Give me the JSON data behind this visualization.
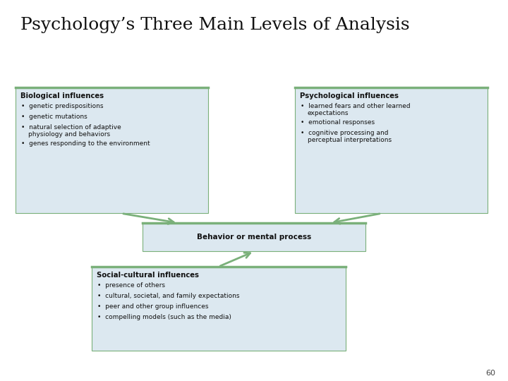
{
  "title": "Psychology’s Three Main Levels of Analysis",
  "title_fontsize": 18,
  "page_number": "60",
  "bg_color": "#ffffff",
  "box_fill": "#dce8f0",
  "box_border": "#7ab07a",
  "arrow_color": "#7ab07a",
  "bio_title": "Biological influences",
  "bio_bullets": [
    "genetic predispositions",
    "genetic mutations",
    "natural selection of adaptive\nphysiology and behaviors",
    "genes responding to the environment"
  ],
  "psych_title": "Psychological influences",
  "psych_bullets": [
    "learned fears and other learned\nexpectations",
    "emotional responses",
    "cognitive processing and\nperceptual interpretations"
  ],
  "center_label": "Behavior or mental process",
  "social_title": "Social-cultural influences",
  "social_bullets": [
    "presence of others",
    "cultural, societal, and family expectations",
    "peer and other group influences",
    "compelling models (such as the media)"
  ]
}
